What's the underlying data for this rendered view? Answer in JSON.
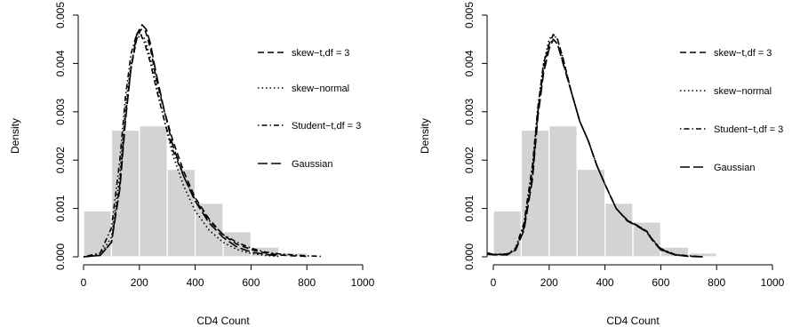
{
  "chart_data": [
    {
      "type": "histogram",
      "xlabel": "CD4 Count",
      "ylabel": "Density",
      "xlim": [
        0,
        1000
      ],
      "ylim": [
        0,
        0.005
      ],
      "x_ticks": [
        "0",
        "200",
        "400",
        "600",
        "800",
        "1000"
      ],
      "y_ticks": [
        "0.000",
        "0.001",
        "0.002",
        "0.003",
        "0.004",
        "0.005"
      ],
      "grid": false,
      "legend_position": "right",
      "histogram": {
        "bin_edges": [
          0,
          100,
          200,
          300,
          400,
          500,
          600,
          700,
          800
        ],
        "density": [
          0.00095,
          0.00262,
          0.00271,
          0.00181,
          0.00111,
          0.00052,
          0.0002,
          8e-05
        ],
        "color": "#d3d3d3"
      },
      "series": [
        {
          "name": "skew−t,df = 3",
          "dash": "dashed",
          "x": [
            0,
            60,
            100,
            130,
            150,
            170,
            190,
            205,
            220,
            240,
            260,
            290,
            320,
            360,
            400,
            450,
            500,
            550,
            600,
            650,
            700,
            750,
            800
          ],
          "y": [
            0,
            3e-05,
            0.0003,
            0.0015,
            0.0029,
            0.0039,
            0.0045,
            0.0047,
            0.0047,
            0.0043,
            0.0037,
            0.003,
            0.0024,
            0.00175,
            0.00122,
            0.00078,
            0.00045,
            0.00026,
            0.00015,
            8e-05,
            4e-05,
            2e-05,
            1e-05
          ]
        },
        {
          "name": "skew−normal",
          "dash": "dotted",
          "x": [
            0,
            60,
            100,
            130,
            150,
            170,
            190,
            205,
            220,
            240,
            260,
            290,
            320,
            360,
            400,
            450,
            500,
            550,
            600,
            650,
            700
          ],
          "y": [
            0,
            5e-05,
            0.0004,
            0.0017,
            0.0031,
            0.004,
            0.0045,
            0.0046,
            0.0045,
            0.0041,
            0.0036,
            0.0028,
            0.0021,
            0.00145,
            0.00095,
            0.00055,
            0.0003,
            0.00015,
            7e-05,
            3e-05,
            1e-05
          ]
        },
        {
          "name": "Student−t,df = 3",
          "dash": "dotdash",
          "x": [
            0,
            60,
            100,
            130,
            150,
            170,
            190,
            205,
            220,
            240,
            260,
            290,
            320,
            360,
            400,
            450,
            500,
            550,
            600,
            650,
            700,
            750,
            800,
            850
          ],
          "y": [
            0,
            8e-05,
            0.0006,
            0.002,
            0.0033,
            0.0042,
            0.0046,
            0.0046,
            0.0044,
            0.004,
            0.0035,
            0.0028,
            0.0022,
            0.00165,
            0.00118,
            0.00075,
            0.00046,
            0.0003,
            0.00018,
            0.0001,
            6e-05,
            4e-05,
            2e-05,
            1e-05
          ]
        },
        {
          "name": "Gaussian",
          "dash": "longdash",
          "x": [
            0,
            60,
            100,
            130,
            150,
            170,
            190,
            210,
            225,
            240,
            260,
            290,
            320,
            360,
            400,
            450,
            500,
            550,
            600,
            650,
            700
          ],
          "y": [
            0,
            3e-05,
            0.0003,
            0.0014,
            0.0028,
            0.0039,
            0.0046,
            0.0048,
            0.0047,
            0.0044,
            0.0038,
            0.003,
            0.0023,
            0.00165,
            0.00115,
            0.0007,
            0.0004,
            0.0002,
            0.0001,
            5e-05,
            2e-05
          ]
        }
      ]
    },
    {
      "type": "histogram",
      "xlabel": "CD4 Count",
      "ylabel": "Density",
      "xlim": [
        0,
        1000
      ],
      "ylim": [
        0,
        0.005
      ],
      "x_ticks": [
        "0",
        "200",
        "400",
        "600",
        "800",
        "1000"
      ],
      "y_ticks": [
        "0.000",
        "0.001",
        "0.002",
        "0.003",
        "0.004",
        "0.005"
      ],
      "grid": false,
      "legend_position": "right",
      "histogram": {
        "bin_edges": [
          0,
          100,
          200,
          300,
          400,
          500,
          600,
          700,
          800
        ],
        "density": [
          0.00095,
          0.00262,
          0.00271,
          0.00181,
          0.00111,
          0.00072,
          0.0002,
          8e-05
        ],
        "color": "#d3d3d3"
      },
      "series": [
        {
          "name": "skew−t,df = 3",
          "dash": "dashed",
          "x": [
            -20,
            0,
            50,
            80,
            110,
            140,
            160,
            180,
            200,
            215,
            230,
            250,
            280,
            310,
            340,
            370,
            400,
            440,
            480,
            520,
            550,
            570,
            600,
            650,
            700,
            750
          ],
          "y": [
            8e-05,
            5e-05,
            5e-05,
            0.00015,
            0.0006,
            0.0017,
            0.003,
            0.0039,
            0.0044,
            0.0046,
            0.0045,
            0.0041,
            0.0034,
            0.0028,
            0.0024,
            0.0019,
            0.0015,
            0.001,
            0.00075,
            0.00063,
            0.00052,
            0.00035,
            0.00015,
            4e-05,
            1e-05,
            0
          ]
        },
        {
          "name": "skew−normal",
          "dash": "dotted",
          "x": [
            -20,
            0,
            50,
            80,
            110,
            140,
            160,
            180,
            200,
            215,
            230,
            250,
            280,
            310,
            340,
            370,
            400,
            440,
            480,
            520,
            550,
            570,
            600,
            650,
            700,
            750
          ],
          "y": [
            6e-05,
            4e-05,
            5e-05,
            0.00015,
            0.00065,
            0.0018,
            0.0031,
            0.004,
            0.0045,
            0.0046,
            0.0045,
            0.0041,
            0.0034,
            0.0028,
            0.0024,
            0.0019,
            0.0015,
            0.001,
            0.00075,
            0.00063,
            0.00052,
            0.00035,
            0.00016,
            5e-05,
            1e-05,
            0
          ]
        },
        {
          "name": "Student−t,df = 3",
          "dash": "dotdash",
          "x": [
            -20,
            0,
            50,
            80,
            110,
            140,
            160,
            180,
            200,
            215,
            230,
            250,
            280,
            310,
            340,
            370,
            400,
            440,
            480,
            520,
            550,
            570,
            600,
            650,
            700,
            750
          ],
          "y": [
            7e-05,
            5e-05,
            6e-05,
            0.00018,
            0.0007,
            0.0019,
            0.0031,
            0.004,
            0.0044,
            0.0045,
            0.0044,
            0.004,
            0.0034,
            0.0028,
            0.0024,
            0.0019,
            0.0015,
            0.001,
            0.00076,
            0.00064,
            0.00053,
            0.00036,
            0.00017,
            5e-05,
            2e-05,
            0
          ]
        },
        {
          "name": "Gaussian",
          "dash": "longdash",
          "x": [
            -20,
            0,
            50,
            80,
            110,
            140,
            160,
            180,
            200,
            215,
            230,
            250,
            280,
            310,
            340,
            370,
            400,
            440,
            480,
            520,
            550,
            570,
            600,
            650,
            700,
            750
          ],
          "y": [
            5e-05,
            4e-05,
            4e-05,
            0.00014,
            0.00055,
            0.0016,
            0.0029,
            0.0038,
            0.0043,
            0.0045,
            0.0044,
            0.004,
            0.0034,
            0.0028,
            0.0024,
            0.0019,
            0.0015,
            0.001,
            0.00074,
            0.00062,
            0.00051,
            0.00034,
            0.00014,
            4e-05,
            1e-05,
            0
          ]
        }
      ]
    }
  ]
}
